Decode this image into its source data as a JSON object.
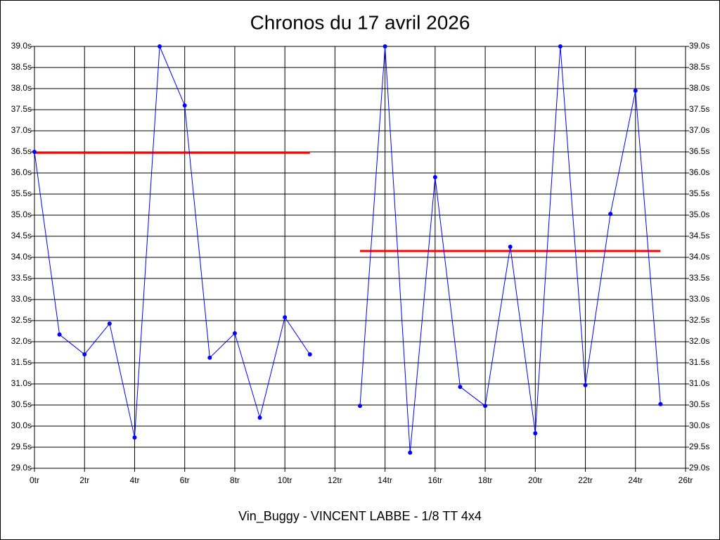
{
  "chart_data": {
    "type": "line",
    "title": "Chronos du 17 avril 2026",
    "x_label": "Vin_Buggy - VINCENT LABBE - 1/8 TT 4x4",
    "x": [
      0,
      1,
      2,
      3,
      4,
      5,
      6,
      7,
      8,
      9,
      10,
      11,
      12,
      13,
      14,
      15,
      16,
      17,
      18,
      19,
      20,
      21,
      22,
      23,
      24,
      25
    ],
    "series": [
      {
        "color": "#0000ff",
        "values": [
          36.5,
          32.17,
          31.7,
          32.43,
          29.73,
          39.0,
          37.6,
          31.62,
          32.2,
          30.2,
          32.58,
          31.7,
          null,
          30.48,
          39.0,
          29.37,
          35.9,
          30.93,
          30.48,
          34.25,
          29.83,
          39.0,
          30.97,
          35.03,
          37.95,
          30.52
        ]
      }
    ],
    "reference_lines": [
      {
        "color": "#ff0000",
        "y": 36.48,
        "x": [
          0,
          11
        ]
      },
      {
        "color": "#ff0000",
        "y": 34.15,
        "x": [
          13,
          25
        ]
      }
    ],
    "xlim": [
      0,
      26
    ],
    "ylim": [
      29.0,
      39.0
    ],
    "xticks": [
      {
        "value": 0,
        "label": "0tr"
      },
      {
        "value": 2,
        "label": "2tr"
      },
      {
        "value": 4,
        "label": "4tr"
      },
      {
        "value": 6,
        "label": "6tr"
      },
      {
        "value": 8,
        "label": "8tr"
      },
      {
        "value": 10,
        "label": "10tr"
      },
      {
        "value": 12,
        "label": "12tr"
      },
      {
        "value": 14,
        "label": "14tr"
      },
      {
        "value": 16,
        "label": "16tr"
      },
      {
        "value": 18,
        "label": "18tr"
      },
      {
        "value": 20,
        "label": "20tr"
      },
      {
        "value": 22,
        "label": "22tr"
      },
      {
        "value": 24,
        "label": "24tr"
      },
      {
        "value": 26,
        "label": "26tr"
      }
    ],
    "yticks": [
      {
        "value": 29.0,
        "label": "29.0s"
      },
      {
        "value": 29.5,
        "label": "29.5s"
      },
      {
        "value": 30.0,
        "label": "30.0s"
      },
      {
        "value": 30.5,
        "label": "30.5s"
      },
      {
        "value": 31.0,
        "label": "31.0s"
      },
      {
        "value": 31.5,
        "label": "31.5s"
      },
      {
        "value": 32.0,
        "label": "32.0s"
      },
      {
        "value": 32.5,
        "label": "32.5s"
      },
      {
        "value": 33.0,
        "label": "33.0s"
      },
      {
        "value": 33.5,
        "label": "33.5s"
      },
      {
        "value": 34.0,
        "label": "34.0s"
      },
      {
        "value": 34.5,
        "label": "34.5s"
      },
      {
        "value": 35.0,
        "label": "35.0s"
      },
      {
        "value": 35.5,
        "label": "35.5s"
      },
      {
        "value": 36.0,
        "label": "36.0s"
      },
      {
        "value": 36.5,
        "label": "36.5s"
      },
      {
        "value": 37.0,
        "label": "37.0s"
      },
      {
        "value": 37.5,
        "label": "37.5s"
      },
      {
        "value": 38.0,
        "label": "38.0s"
      },
      {
        "value": 38.5,
        "label": "38.5s"
      },
      {
        "value": 39.0,
        "label": "39.0s"
      }
    ],
    "grid": true
  }
}
